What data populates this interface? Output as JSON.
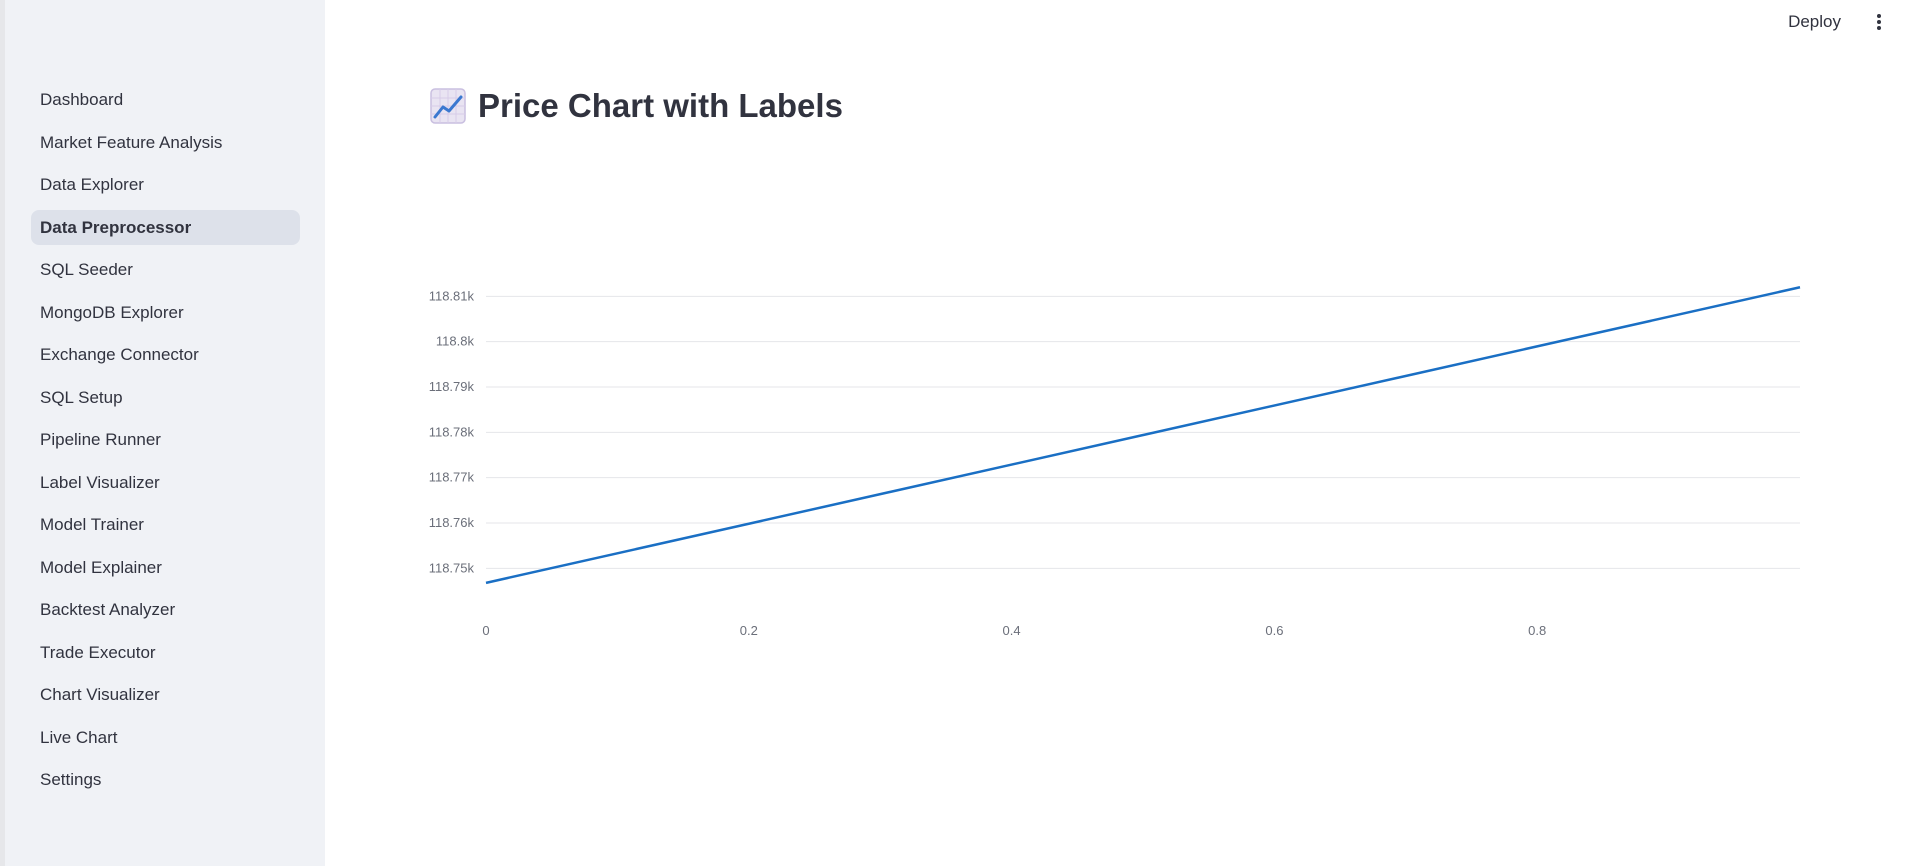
{
  "sidebar": {
    "items": [
      {
        "label": "Dashboard",
        "active": false
      },
      {
        "label": "Market Feature Analysis",
        "active": false
      },
      {
        "label": "Data Explorer",
        "active": false
      },
      {
        "label": "Data Preprocessor",
        "active": true
      },
      {
        "label": "SQL Seeder",
        "active": false
      },
      {
        "label": "MongoDB Explorer",
        "active": false
      },
      {
        "label": "Exchange Connector",
        "active": false
      },
      {
        "label": "SQL Setup",
        "active": false
      },
      {
        "label": "Pipeline Runner",
        "active": false
      },
      {
        "label": "Label Visualizer",
        "active": false
      },
      {
        "label": "Model Trainer",
        "active": false
      },
      {
        "label": "Model Explainer",
        "active": false
      },
      {
        "label": "Backtest Analyzer",
        "active": false
      },
      {
        "label": "Trade Executor",
        "active": false
      },
      {
        "label": "Chart Visualizer",
        "active": false
      },
      {
        "label": "Live Chart",
        "active": false
      },
      {
        "label": "Settings",
        "active": false
      }
    ]
  },
  "header": {
    "deploy_label": "Deploy",
    "menu_icon": "kebab-menu-icon"
  },
  "main": {
    "title_icon": "chart-increasing-icon",
    "title": "Price Chart with Labels"
  },
  "chart_data": {
    "type": "line",
    "x": [
      0,
      1
    ],
    "series": [
      {
        "values": [
          118746.8,
          118812
        ],
        "color": "#1a6fc4"
      }
    ],
    "y_ticks": [
      {
        "value": 118750,
        "label": "118.75k"
      },
      {
        "value": 118760,
        "label": "118.76k"
      },
      {
        "value": 118770,
        "label": "118.77k"
      },
      {
        "value": 118780,
        "label": "118.78k"
      },
      {
        "value": 118790,
        "label": "118.79k"
      },
      {
        "value": 118800,
        "label": "118.8k"
      },
      {
        "value": 118810,
        "label": "118.81k"
      }
    ],
    "x_ticks": [
      {
        "value": 0,
        "label": "0"
      },
      {
        "value": 0.2,
        "label": "0.2"
      },
      {
        "value": 0.4,
        "label": "0.4"
      },
      {
        "value": 0.6,
        "label": "0.6"
      },
      {
        "value": 0.8,
        "label": "0.8"
      }
    ],
    "xlim": [
      0,
      1
    ],
    "ylim": [
      118743.9,
      118813.6
    ],
    "grid": true,
    "xlabel": "",
    "ylabel": ""
  }
}
